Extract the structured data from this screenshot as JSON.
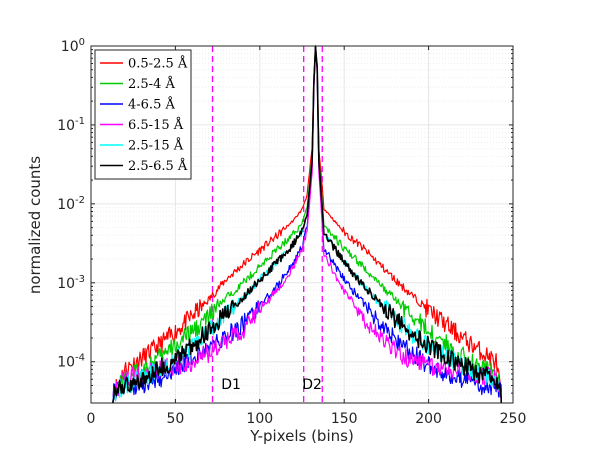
{
  "chart_data": {
    "type": "line",
    "title": "",
    "xlabel": "Y-pixels (bins)",
    "ylabel": "normalized counts",
    "xlim": [
      0,
      250
    ],
    "ylim": [
      3e-05,
      1
    ],
    "yscale": "log",
    "grid": true,
    "legend_position": "top-left",
    "xticks": [
      0,
      50,
      100,
      150,
      200,
      250
    ],
    "xtick_labels": [
      "0",
      "50",
      "100",
      "150",
      "200",
      "250"
    ],
    "yticks": [
      0.0001,
      0.001,
      0.01,
      0.1,
      1
    ],
    "ytick_labels": [
      {
        "base": "10",
        "exp": "-4"
      },
      {
        "base": "10",
        "exp": "-3"
      },
      {
        "base": "10",
        "exp": "-2"
      },
      {
        "base": "10",
        "exp": "-1"
      },
      {
        "base": "10",
        "exp": "0"
      }
    ],
    "vlines": [
      {
        "x": 72,
        "color": "#ff00ff"
      },
      {
        "x": 126,
        "color": "#ff00ff"
      },
      {
        "x": 137,
        "color": "#ff00ff"
      }
    ],
    "annotations": [
      {
        "text": "D1",
        "x": 83,
        "y": 4.5e-05
      },
      {
        "text": "D2",
        "x": 131,
        "y": 4.5e-05
      }
    ],
    "series": [
      {
        "name": "0.5-2.5 Å",
        "color": "#ff0000",
        "x": [
          13,
          20,
          30,
          40,
          50,
          60,
          70,
          80,
          90,
          100,
          110,
          120,
          125,
          128,
          131,
          132,
          133,
          134,
          135,
          138,
          145,
          150,
          160,
          170,
          180,
          190,
          200,
          210,
          220,
          230,
          240,
          243
        ],
        "y": [
          4e-05,
          8e-05,
          0.00011,
          0.00016,
          0.00024,
          0.00038,
          0.00062,
          0.0011,
          0.0017,
          0.0026,
          0.0039,
          0.0062,
          0.0085,
          0.013,
          0.05,
          0.4,
          1.0,
          0.6,
          0.05,
          0.0088,
          0.0058,
          0.0044,
          0.0029,
          0.0018,
          0.0011,
          0.0007,
          0.00045,
          0.0003,
          0.0002,
          0.00014,
          0.0001,
          4e-05
        ]
      },
      {
        "name": "2.5-4 Å",
        "color": "#00cc00",
        "x": [
          13,
          20,
          30,
          40,
          50,
          60,
          70,
          80,
          90,
          100,
          110,
          120,
          125,
          128,
          131,
          132,
          133,
          134,
          135,
          138,
          145,
          150,
          160,
          170,
          180,
          190,
          200,
          210,
          220,
          230,
          240,
          243
        ],
        "y": [
          4e-05,
          6e-05,
          8e-05,
          0.00011,
          0.00016,
          0.00024,
          0.00038,
          0.00064,
          0.001,
          0.0016,
          0.0026,
          0.0042,
          0.0058,
          0.009,
          0.04,
          0.35,
          1.0,
          0.55,
          0.04,
          0.0055,
          0.0036,
          0.0027,
          0.0017,
          0.001,
          0.00062,
          0.00038,
          0.00025,
          0.00017,
          0.00012,
          9e-05,
          7e-05,
          4e-05
        ]
      },
      {
        "name": "4-6.5 Å",
        "color": "#0000ff",
        "x": [
          13,
          20,
          30,
          40,
          50,
          60,
          70,
          80,
          90,
          100,
          110,
          120,
          125,
          128,
          131,
          132,
          133,
          134,
          135,
          138,
          145,
          150,
          160,
          170,
          180,
          190,
          200,
          210,
          220,
          230,
          240,
          243
        ],
        "y": [
          4e-05,
          5e-05,
          5e-05,
          6e-05,
          8e-05,
          0.00011,
          0.00015,
          0.00021,
          0.0003,
          0.0005,
          0.0009,
          0.0018,
          0.0028,
          0.005,
          0.03,
          0.3,
          1.0,
          0.5,
          0.03,
          0.0028,
          0.0016,
          0.0011,
          0.0006,
          0.00033,
          0.0002,
          0.00013,
          9e-05,
          7e-05,
          6e-05,
          5e-05,
          5e-05,
          4e-05
        ]
      },
      {
        "name": "6.5-15 Å",
        "color": "#ff00ff",
        "x": [
          13,
          20,
          30,
          40,
          50,
          60,
          70,
          80,
          90,
          100,
          110,
          120,
          125,
          128,
          131,
          132,
          133,
          134,
          135,
          138,
          145,
          150,
          160,
          170,
          180,
          190,
          200,
          210,
          220,
          230,
          240,
          243
        ],
        "y": [
          4e-05,
          6e-05,
          7e-05,
          8e-05,
          9e-05,
          0.0001,
          0.00013,
          0.00018,
          0.00025,
          0.00045,
          0.0008,
          0.0016,
          0.0025,
          0.0045,
          0.025,
          0.28,
          1.0,
          0.45,
          0.025,
          0.0024,
          0.0012,
          0.0008,
          0.0004,
          0.00022,
          0.00014,
          0.0001,
          9e-05,
          8e-05,
          8e-05,
          7e-05,
          6e-05,
          4e-05
        ]
      },
      {
        "name": "2.5-15 Å",
        "color": "#00ffff",
        "x": [
          13,
          20,
          30,
          40,
          50,
          60,
          70,
          80,
          90,
          100,
          110,
          120,
          125,
          128,
          131,
          132,
          133,
          134,
          135,
          138,
          145,
          150,
          160,
          170,
          180,
          190,
          200,
          210,
          220,
          230,
          240,
          243
        ],
        "y": [
          4e-05,
          5e-05,
          6e-05,
          8e-05,
          0.00011,
          0.00016,
          0.00025,
          0.0004,
          0.00065,
          0.0011,
          0.0018,
          0.0031,
          0.0045,
          0.0072,
          0.035,
          0.33,
          1.0,
          0.52,
          0.035,
          0.0043,
          0.0026,
          0.0018,
          0.001,
          0.00058,
          0.00035,
          0.00023,
          0.00016,
          0.00012,
          9e-05,
          7e-05,
          6e-05,
          4e-05
        ]
      },
      {
        "name": "2.5-6.5 Å",
        "color": "#000000",
        "x": [
          13,
          20,
          30,
          40,
          50,
          60,
          70,
          80,
          90,
          100,
          110,
          120,
          125,
          128,
          131,
          132,
          133,
          134,
          135,
          138,
          145,
          150,
          160,
          170,
          180,
          190,
          200,
          210,
          220,
          230,
          240,
          243
        ],
        "y": [
          4e-05,
          5e-05,
          6e-05,
          8e-05,
          0.00011,
          0.00016,
          0.00025,
          0.0004,
          0.00065,
          0.0011,
          0.0018,
          0.0031,
          0.0045,
          0.0072,
          0.035,
          0.33,
          1.0,
          0.52,
          0.035,
          0.0043,
          0.0026,
          0.0018,
          0.001,
          0.00058,
          0.00035,
          0.00023,
          0.00016,
          0.00012,
          9e-05,
          7e-05,
          6e-05,
          4e-05
        ]
      }
    ]
  }
}
